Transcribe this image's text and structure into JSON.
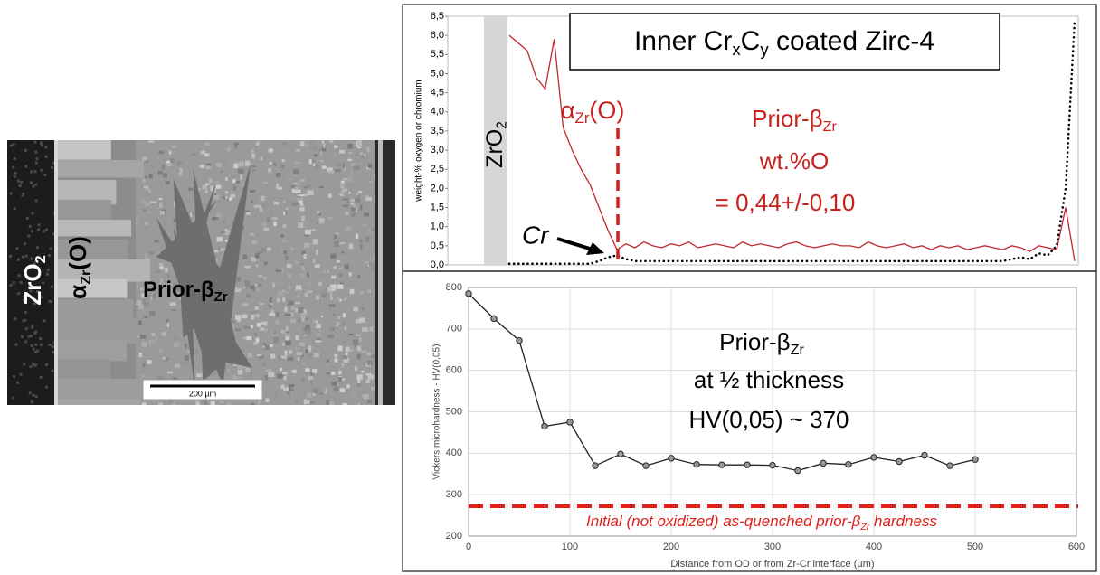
{
  "micrograph": {
    "labels": {
      "zro2": [
        "ZrO",
        "2"
      ],
      "alpha": [
        "α",
        "Zr",
        "(O)"
      ],
      "prior_beta": [
        "Prior-β",
        "Zr"
      ]
    },
    "scale_bar": "200 µm"
  },
  "chart_data": [
    {
      "type": "line",
      "title": [
        "Inner Cr",
        "x",
        "C",
        "y",
        "  coated Zirc-4"
      ],
      "ylabel": "weight-% oxygen or chromium",
      "ylim": [
        0,
        6.5
      ],
      "yticks": [
        {
          "value": 0,
          "label": "0,0"
        },
        {
          "value": 0.5,
          "label": "0,5"
        },
        {
          "value": 1,
          "label": "1,0"
        },
        {
          "value": 1.5,
          "label": "1,5"
        },
        {
          "value": 2,
          "label": "2,0"
        },
        {
          "value": 2.5,
          "label": "2,5"
        },
        {
          "value": 3,
          "label": "3,0"
        },
        {
          "value": 3.5,
          "label": "3,5"
        },
        {
          "value": 4,
          "label": "4,0"
        },
        {
          "value": 4.5,
          "label": "4,5"
        },
        {
          "value": 5,
          "label": "5,0"
        },
        {
          "value": 5.5,
          "label": "5,5"
        },
        {
          "value": 6,
          "label": "6,0"
        },
        {
          "value": 6.5,
          "label": "6,5"
        }
      ],
      "series": [
        {
          "color": "#c0282d",
          "style": "solid",
          "values": [
            6.0,
            5.8,
            5.6,
            4.9,
            4.6,
            5.9,
            3.6,
            3.0,
            2.5,
            2.1,
            1.5,
            0.9,
            0.4,
            0.55,
            0.45,
            0.6,
            0.5,
            0.45,
            0.55,
            0.5,
            0.6,
            0.45,
            0.5,
            0.55,
            0.5,
            0.45,
            0.6,
            0.5,
            0.55,
            0.5,
            0.45,
            0.55,
            0.6,
            0.5,
            0.45,
            0.5,
            0.55,
            0.5,
            0.5,
            0.45,
            0.6,
            0.5,
            0.45,
            0.5,
            0.55,
            0.45,
            0.5,
            0.4,
            0.5,
            0.45,
            0.5,
            0.4,
            0.45,
            0.5,
            0.45,
            0.4,
            0.5,
            0.45,
            0.35,
            0.5,
            0.45,
            0.4,
            1.5,
            0.1
          ]
        },
        {
          "color": "#000000",
          "style": "dotted",
          "values": [
            0.03,
            0.03,
            0.03,
            0.03,
            0.03,
            0.03,
            0.03,
            0.03,
            0.03,
            0.03,
            0.1,
            0.2,
            0.25,
            0.15,
            0.1,
            0.1,
            0.1,
            0.1,
            0.1,
            0.1,
            0.1,
            0.1,
            0.1,
            0.1,
            0.1,
            0.1,
            0.1,
            0.1,
            0.1,
            0.1,
            0.1,
            0.1,
            0.1,
            0.1,
            0.1,
            0.1,
            0.1,
            0.1,
            0.1,
            0.1,
            0.1,
            0.1,
            0.1,
            0.1,
            0.1,
            0.1,
            0.1,
            0.1,
            0.1,
            0.1,
            0.1,
            0.1,
            0.1,
            0.1,
            0.1,
            0.1,
            0.15,
            0.2,
            0.15,
            0.3,
            0.25,
            0.5,
            2.0,
            6.4
          ]
        }
      ],
      "annotations": {
        "zro2": [
          "ZrO",
          "2"
        ],
        "alpha": [
          "α",
          "Zr",
          "(O)"
        ],
        "prior_beta": [
          "Prior-β",
          "Zr"
        ],
        "wt": "wt.%O",
        "value": "= 0,44+/-0,10",
        "cr": "Cr"
      }
    },
    {
      "type": "line",
      "xlabel": "Distance from OD or from Zr-Cr interface (µm)",
      "ylabel": "Vickers microhardness  -  HV(0,05)",
      "xlim": [
        0,
        600
      ],
      "xticks": [
        0,
        100,
        200,
        300,
        400,
        500,
        600
      ],
      "ylim": [
        200,
        800
      ],
      "yticks": [
        200,
        300,
        400,
        500,
        600,
        700,
        800
      ],
      "grid": true,
      "x": [
        0,
        25,
        50,
        75,
        100,
        125,
        150,
        175,
        200,
        225,
        250,
        275,
        300,
        325,
        350,
        375,
        400,
        425,
        450,
        475,
        500
      ],
      "series": [
        {
          "color": "#222222",
          "values": [
            785,
            725,
            672,
            465,
            475,
            370,
            398,
            370,
            388,
            373,
            372,
            372,
            371,
            358,
            376,
            373,
            390,
            380,
            395,
            370,
            385
          ]
        }
      ],
      "reference_line": {
        "value": 272,
        "color": "#e0201b",
        "label": [
          "Initial (not oxidized) as-quenched prior-β",
          "Zr",
          " hardness"
        ]
      },
      "annotations": {
        "l1": [
          "Prior-β",
          "Zr"
        ],
        "l2": "at ½ thickness",
        "l3": "HV(0,05) ~ 370"
      }
    }
  ]
}
